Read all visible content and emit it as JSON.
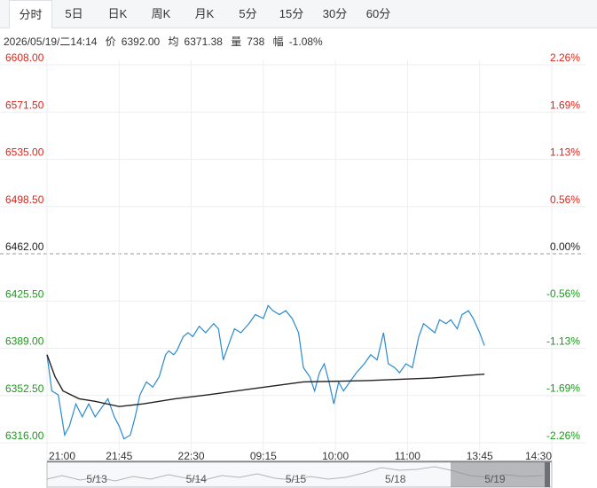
{
  "tabs": {
    "items": [
      "分时",
      "5日",
      "日K",
      "周K",
      "月K",
      "5分",
      "15分",
      "30分",
      "60分"
    ],
    "active": 0
  },
  "info": {
    "time": "2026/05/19/二14:14",
    "price_label": "价",
    "price": "6392.00",
    "avg_label": "均",
    "avg": "6371.38",
    "volume_label": "量",
    "volume": "738",
    "change_label": "幅",
    "change": "-1.08%"
  },
  "chart_data": {
    "type": "line",
    "xlim": [
      0,
      315
    ],
    "xticks": [
      {
        "value": 0,
        "label": "21:00"
      },
      {
        "value": 45,
        "label": "21:45"
      },
      {
        "value": 90,
        "label": "22:30"
      },
      {
        "value": 135,
        "label": "09:15"
      },
      {
        "value": 180,
        "label": "10:00"
      },
      {
        "value": 225,
        "label": "11:00"
      },
      {
        "value": 270,
        "label": "13:45"
      },
      {
        "value": 315,
        "label": "14:30"
      }
    ],
    "ylim": [
      6316,
      6608
    ],
    "yticks": [
      {
        "value": 6316,
        "label": "6316.00"
      },
      {
        "value": 6352.5,
        "label": "6352.50"
      },
      {
        "value": 6389,
        "label": "6389.00"
      },
      {
        "value": 6425.5,
        "label": "6425.50"
      },
      {
        "value": 6462,
        "label": "6462.00"
      },
      {
        "value": 6498.5,
        "label": "6498.50"
      },
      {
        "value": 6535,
        "label": "6535.00"
      },
      {
        "value": 6571.5,
        "label": "6571.50"
      },
      {
        "value": 6608,
        "label": "6608.00"
      }
    ],
    "y2lim": [
      -2.26,
      2.26
    ],
    "y2ticks": [
      {
        "value": -2.26,
        "label": "-2.26%"
      },
      {
        "value": -1.69,
        "label": "-1.69%"
      },
      {
        "value": -1.13,
        "label": "-1.13%"
      },
      {
        "value": -0.56,
        "label": "-0.56%"
      },
      {
        "value": 0,
        "label": "0.00%"
      },
      {
        "value": 0.56,
        "label": "0.56%"
      },
      {
        "value": 1.13,
        "label": "1.13%"
      },
      {
        "value": 1.69,
        "label": "1.69%"
      },
      {
        "value": 2.26,
        "label": "2.26%"
      }
    ],
    "up_color": "#e0241b",
    "down_color": "#1a9a1a",
    "flat_color": "#222222",
    "grid": true,
    "series": [
      {
        "color": "#2a8bd0",
        "x": [
          0,
          3,
          7,
          11,
          14,
          18,
          22,
          26,
          30,
          34,
          38,
          42,
          45,
          48,
          52,
          55,
          58,
          62,
          66,
          70,
          74,
          76,
          79,
          81,
          85,
          88,
          91,
          95,
          99,
          104,
          107,
          110,
          114,
          117,
          121,
          126,
          130,
          135,
          138,
          141,
          145,
          149,
          153,
          157,
          160,
          164,
          167,
          170,
          173,
          176,
          179,
          182,
          185,
          189,
          193,
          198,
          202,
          206,
          210,
          213,
          217,
          220,
          224,
          228,
          232,
          235,
          239,
          242,
          245,
          249,
          252,
          256,
          259,
          263,
          266,
          270,
          273
        ],
        "values": [
          6384,
          6356,
          6353,
          6322,
          6329,
          6346,
          6336,
          6346,
          6336,
          6343,
          6350,
          6336,
          6329,
          6319,
          6322,
          6336,
          6353,
          6363,
          6359,
          6367,
          6384,
          6387,
          6384,
          6387,
          6398,
          6401,
          6398,
          6406,
          6401,
          6408,
          6404,
          6380,
          6394,
          6404,
          6401,
          6408,
          6415,
          6412,
          6422,
          6418,
          6415,
          6418,
          6412,
          6401,
          6374,
          6367,
          6356,
          6370,
          6377,
          6363,
          6346,
          6363,
          6356,
          6363,
          6370,
          6377,
          6384,
          6380,
          6401,
          6377,
          6374,
          6370,
          6377,
          6374,
          6398,
          6408,
          6404,
          6401,
          6411,
          6408,
          6411,
          6404,
          6415,
          6418,
          6412,
          6401,
          6391
        ]
      },
      {
        "color": "#222222",
        "x": [
          0,
          5,
          10,
          20,
          30,
          45,
          60,
          80,
          100,
          130,
          160,
          200,
          240,
          273
        ],
        "values": [
          6384,
          6367,
          6356,
          6350,
          6348,
          6344,
          6346,
          6350,
          6353,
          6358,
          6363,
          6364,
          6366,
          6369
        ]
      }
    ],
    "navigator_labels": [
      "5/13",
      "5/14",
      "5/15",
      "5/18",
      "5/19"
    ]
  }
}
